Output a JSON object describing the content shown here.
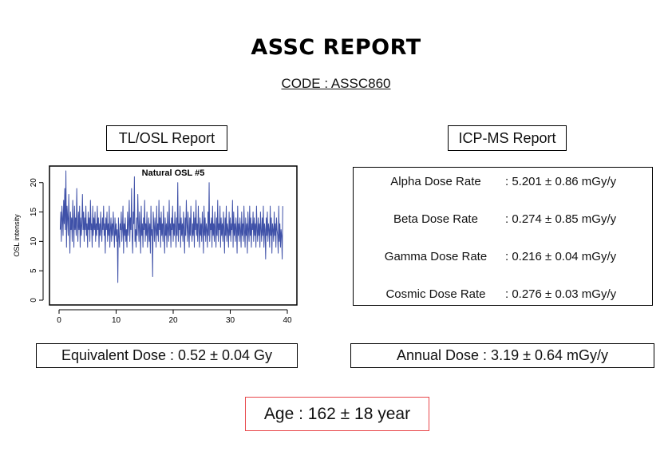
{
  "report": {
    "title": "ASSC REPORT",
    "code": "CODE : ASSC860"
  },
  "tlosl": {
    "title": "TL/OSL Report",
    "equivalent_dose": "Equivalent Dose : 0.52 ± 0.04 Gy"
  },
  "icpms": {
    "title": "ICP-MS Report",
    "rows": [
      {
        "label": "Alpha Dose Rate",
        "value": ": 5.201 ± 0.86 mGy/y"
      },
      {
        "label": "Beta Dose Rate",
        "value": ": 0.274 ± 0.85 mGy/y"
      },
      {
        "label": "Gamma Dose Rate",
        "value": ": 0.216 ± 0.04 mGy/y"
      },
      {
        "label": "Cosmic Dose Rate",
        "value": ": 0.276 ± 0.03 mGy/y"
      }
    ],
    "annual_dose": "Annual Dose : 3.19 ± 0.64 mGy/y"
  },
  "age": "Age : 162 ± 18 year",
  "colors": {
    "series": "#3f51a8",
    "age_border": "#e8474a"
  },
  "chart_data": {
    "type": "line",
    "title": "Natural OSL #5",
    "xlabel": "",
    "ylabel": "OSL intensity",
    "xlim": [
      0,
      40
    ],
    "ylim": [
      0,
      22
    ],
    "xticks": [
      0,
      10,
      20,
      30,
      40
    ],
    "yticks": [
      0,
      5,
      10,
      15,
      20
    ],
    "grid": false,
    "series": [
      {
        "x_start": 0.2,
        "x_step": 0.1,
        "values": [
          12,
          15,
          10,
          16,
          14,
          11,
          17,
          13,
          19,
          12,
          22,
          9,
          16,
          14,
          11,
          18,
          13,
          8,
          15,
          12,
          14,
          10,
          17,
          13,
          9,
          16,
          12,
          14,
          11,
          19,
          13,
          10,
          15,
          12,
          16,
          9,
          14,
          11,
          13,
          18,
          12,
          15,
          10,
          14,
          12,
          16,
          11,
          13,
          9,
          15,
          12,
          14,
          10,
          17,
          12,
          13,
          9,
          16,
          11,
          14,
          12,
          15,
          10,
          13,
          11,
          16,
          12,
          14,
          9,
          13,
          11,
          15,
          12,
          10,
          14,
          12,
          16,
          11,
          13,
          8,
          14,
          12,
          15,
          10,
          13,
          11,
          16,
          9,
          12,
          14,
          10,
          13,
          11,
          15,
          12,
          9,
          14,
          11,
          13,
          10,
          12,
          3,
          14,
          11,
          9,
          13,
          12,
          15,
          10,
          12,
          16,
          8,
          13,
          11,
          14,
          10,
          12,
          9,
          15,
          11,
          13,
          17,
          10,
          14,
          12,
          19,
          11,
          8,
          15,
          13,
          21,
          10,
          12,
          9,
          14,
          11,
          18,
          13,
          10,
          15,
          12,
          8,
          16,
          11,
          13,
          9,
          14,
          12,
          17,
          10,
          13,
          11,
          15,
          9,
          12,
          14,
          10,
          13,
          8,
          16,
          11,
          12,
          4,
          15,
          13,
          10,
          14,
          12,
          9,
          16,
          11,
          13,
          10,
          17,
          12,
          14,
          9,
          15,
          11,
          13,
          10,
          16,
          12,
          8,
          14,
          11,
          13,
          9,
          15,
          12,
          10,
          17,
          11,
          13,
          9,
          14,
          12,
          16,
          10,
          13,
          11,
          15,
          12,
          9,
          14,
          11,
          20,
          10,
          13,
          12,
          16,
          9,
          14,
          11,
          13,
          10,
          15,
          12,
          8,
          14,
          11,
          17,
          13,
          10,
          15,
          12,
          9,
          14,
          11,
          16,
          12,
          10,
          13,
          11,
          15,
          9,
          14,
          12,
          17,
          11,
          13,
          10,
          16,
          12,
          9,
          14,
          11,
          13,
          10,
          15,
          12,
          8,
          16,
          11,
          14,
          10,
          13,
          12,
          9,
          15,
          11,
          20,
          10,
          13,
          12,
          14,
          9,
          16,
          11,
          13,
          10,
          15,
          12,
          9,
          14,
          11,
          17,
          10,
          13,
          12,
          16,
          9,
          14,
          11,
          13,
          10,
          15,
          12,
          8,
          14,
          11,
          16,
          10,
          13,
          12,
          9,
          15,
          11,
          14,
          10,
          13,
          12,
          17,
          9,
          15,
          11,
          13,
          10,
          14,
          12,
          8,
          16,
          11,
          13,
          10,
          14,
          12,
          9,
          15,
          11,
          13,
          10,
          16,
          12,
          9,
          14,
          11,
          13,
          8,
          15,
          12,
          10,
          16,
          11,
          14,
          9,
          13,
          12,
          15,
          10,
          14,
          11,
          13,
          9,
          16,
          12,
          10,
          14,
          11,
          13,
          9,
          15,
          12,
          10,
          14,
          11,
          16,
          9,
          13,
          12,
          7,
          14,
          11,
          15,
          10,
          13,
          12,
          9,
          16,
          11,
          14,
          8,
          13,
          12,
          10,
          15,
          11,
          13,
          9,
          14,
          12,
          11,
          8,
          16,
          10,
          13,
          9,
          12,
          11,
          7,
          16
        ]
      }
    ]
  }
}
